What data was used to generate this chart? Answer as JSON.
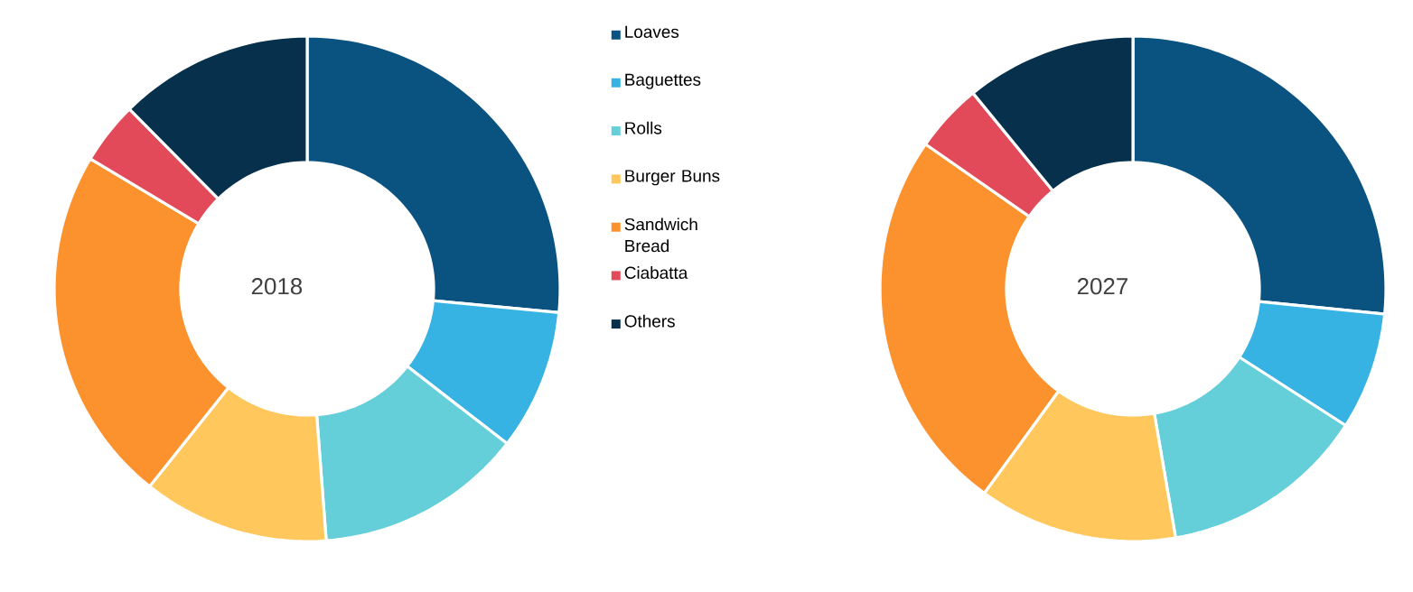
{
  "chart_data": {
    "type": "donut",
    "categories": [
      "Loaves",
      "Baguettes",
      "Rolls",
      "Burger Buns",
      "Sandwich Bread",
      "Ciabatta",
      "Others"
    ],
    "colors": [
      "#0a5380",
      "#36b2e3",
      "#64cfd9",
      "#ffc75c",
      "#fc922d",
      "#e34a59",
      "#06304c"
    ],
    "legend": "right",
    "series": [
      {
        "name": "2018",
        "values": [
          26.5,
          9.0,
          13.3,
          11.9,
          22.9,
          4.0,
          12.4
        ]
      },
      {
        "name": "2027",
        "values": [
          26.6,
          7.5,
          13.2,
          12.7,
          24.7,
          4.4,
          10.9
        ]
      }
    ]
  }
}
